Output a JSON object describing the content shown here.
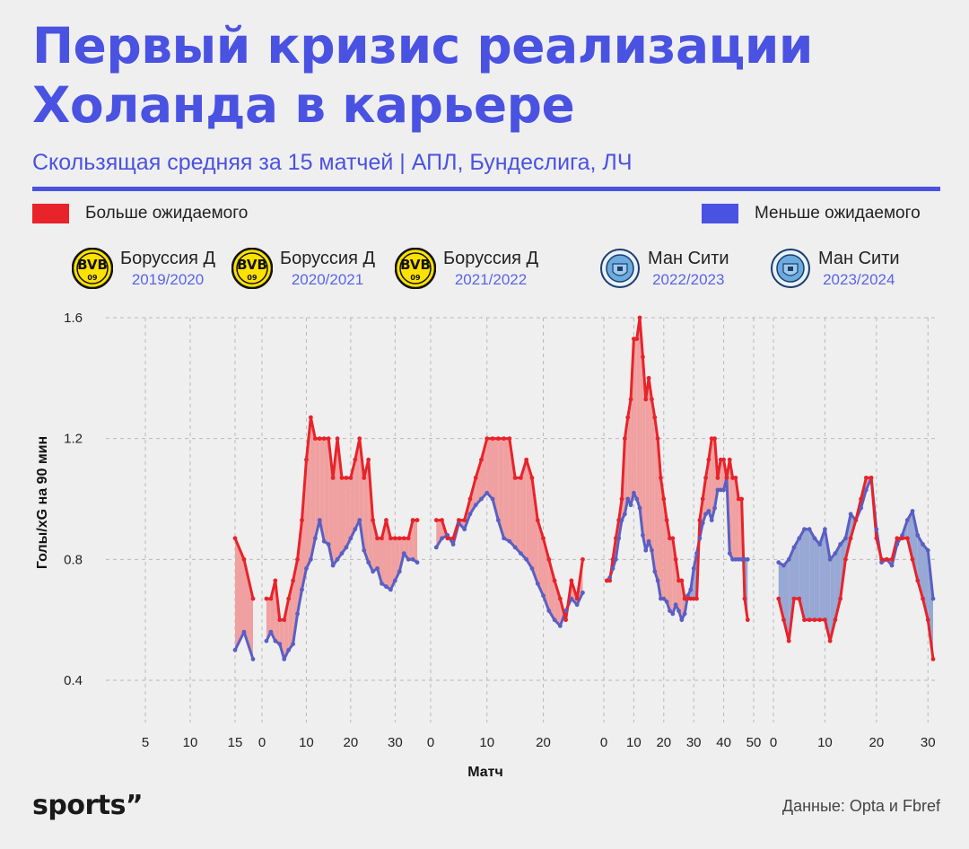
{
  "title": "Первый кризис реализации Холанда в карьере",
  "subtitle": "Скользящая средняя за 15 матчей | АПЛ, Бундеслига, ЛЧ",
  "legend": {
    "above": "Больше ожидаемого",
    "below": "Меньше ожидаемого"
  },
  "colors": {
    "accent": "#4a52e2",
    "goals": "#e8232a",
    "xg": "#5a5fc4",
    "above_fill": "#f0a0a0",
    "below_fill": "#97a8d4"
  },
  "seasons": [
    {
      "club": "Боруссия Д",
      "season": "2019/2020",
      "logo": "bvb-logo"
    },
    {
      "club": "Боруссия Д",
      "season": "2020/2021",
      "logo": "bvb-logo"
    },
    {
      "club": "Боруссия Д",
      "season": "2021/2022",
      "logo": "bvb-logo"
    },
    {
      "club": "Ман Сити",
      "season": "2022/2023",
      "logo": "man-city-logo"
    },
    {
      "club": "Ман Сити",
      "season": "2023/2024",
      "logo": "man-city-logo"
    }
  ],
  "chart_data": {
    "type": "line",
    "ylabel": "Голы/xG на 90 мин",
    "xlabel": "Матч",
    "ylim": [
      0.4,
      1.6
    ],
    "yticks": [
      "0.4",
      "0.8",
      "1.2",
      "1.6"
    ],
    "grid": true,
    "legend": "top",
    "series_names": [
      "goals",
      "xG"
    ],
    "panels": [
      {
        "season": "2019/2020",
        "xrange": [
          1,
          17
        ],
        "xticks": [
          5,
          10,
          15
        ],
        "x": [
          15,
          16,
          17
        ],
        "goals": [
          0.87,
          0.8,
          0.67
        ],
        "xg": [
          0.5,
          0.56,
          0.47
        ]
      },
      {
        "season": "2020/2021",
        "xrange": [
          0,
          36
        ],
        "xticks": [
          0,
          10,
          20,
          30
        ],
        "x": [
          1,
          2,
          3,
          4,
          5,
          6,
          7,
          8,
          9,
          10,
          11,
          12,
          13,
          14,
          15,
          16,
          17,
          18,
          19,
          20,
          21,
          22,
          23,
          24,
          25,
          26,
          27,
          28,
          29,
          30,
          31,
          32,
          33,
          34,
          35
        ],
        "goals": [
          0.67,
          0.67,
          0.73,
          0.6,
          0.6,
          0.67,
          0.73,
          0.8,
          0.93,
          1.13,
          1.27,
          1.2,
          1.2,
          1.2,
          1.2,
          1.07,
          1.2,
          1.07,
          1.07,
          1.07,
          1.13,
          1.2,
          1.07,
          1.13,
          0.93,
          0.87,
          0.87,
          0.93,
          0.87,
          0.87,
          0.87,
          0.87,
          0.87,
          0.93,
          0.93
        ],
        "xg": [
          0.53,
          0.56,
          0.53,
          0.52,
          0.47,
          0.5,
          0.52,
          0.62,
          0.7,
          0.77,
          0.8,
          0.87,
          0.93,
          0.86,
          0.85,
          0.78,
          0.8,
          0.82,
          0.84,
          0.87,
          0.9,
          0.93,
          0.83,
          0.79,
          0.76,
          0.77,
          0.72,
          0.71,
          0.7,
          0.73,
          0.76,
          0.82,
          0.8,
          0.8,
          0.79
        ]
      },
      {
        "season": "2021/2022",
        "xrange": [
          0,
          29
        ],
        "xticks": [
          0,
          10,
          20
        ],
        "x": [
          1,
          2,
          3,
          4,
          5,
          6,
          7,
          8,
          9,
          10,
          11,
          12,
          13,
          14,
          15,
          16,
          17,
          18,
          19,
          20,
          21,
          22,
          23,
          24,
          25,
          26,
          27
        ],
        "goals": [
          0.93,
          0.93,
          0.87,
          0.87,
          0.93,
          0.93,
          1.0,
          1.07,
          1.13,
          1.2,
          1.2,
          1.2,
          1.2,
          1.2,
          1.07,
          1.07,
          1.13,
          1.07,
          0.93,
          0.87,
          0.8,
          0.73,
          0.67,
          0.6,
          0.73,
          0.67,
          0.8
        ],
        "xg": [
          0.84,
          0.87,
          0.88,
          0.85,
          0.92,
          0.9,
          0.95,
          0.98,
          1.0,
          1.02,
          1.0,
          0.93,
          0.87,
          0.86,
          0.84,
          0.82,
          0.8,
          0.77,
          0.72,
          0.68,
          0.63,
          0.6,
          0.58,
          0.63,
          0.67,
          0.65,
          0.69
        ]
      },
      {
        "season": "2022/2023",
        "xrange": [
          0,
          53
        ],
        "xticks": [
          0,
          10,
          20,
          30,
          40,
          50
        ],
        "x": [
          1,
          2,
          3,
          4,
          5,
          6,
          7,
          8,
          9,
          10,
          11,
          12,
          13,
          14,
          15,
          16,
          17,
          18,
          19,
          20,
          21,
          22,
          23,
          24,
          25,
          26,
          27,
          28,
          29,
          30,
          31,
          32,
          33,
          34,
          35,
          36,
          37,
          38,
          39,
          40,
          41,
          42,
          43,
          44,
          45,
          46,
          47,
          48
        ],
        "goals": [
          0.73,
          0.73,
          0.8,
          0.87,
          0.93,
          1.0,
          1.2,
          1.27,
          1.33,
          1.53,
          1.53,
          1.6,
          1.47,
          1.33,
          1.4,
          1.33,
          1.27,
          1.2,
          1.07,
          1.0,
          0.93,
          0.87,
          0.87,
          0.8,
          0.73,
          0.73,
          0.67,
          0.67,
          0.67,
          0.67,
          0.67,
          0.93,
          1.0,
          1.07,
          1.13,
          1.2,
          1.2,
          1.07,
          1.13,
          1.13,
          1.07,
          1.13,
          1.07,
          1.07,
          1.0,
          1.0,
          0.67,
          0.6
        ],
        "xg": [
          0.73,
          0.74,
          0.77,
          0.8,
          0.87,
          0.93,
          0.95,
          1.0,
          0.98,
          1.02,
          1.0,
          0.97,
          0.88,
          0.83,
          0.86,
          0.83,
          0.76,
          0.73,
          0.67,
          0.67,
          0.66,
          0.63,
          0.62,
          0.65,
          0.63,
          0.6,
          0.62,
          0.68,
          0.7,
          0.77,
          0.82,
          0.87,
          0.92,
          0.95,
          0.96,
          0.93,
          0.97,
          1.03,
          1.03,
          1.03,
          1.07,
          0.82,
          0.8,
          0.8,
          0.8,
          0.8,
          0.8,
          0.8
        ]
      },
      {
        "season": "2023/2024",
        "xrange": [
          0,
          31
        ],
        "xticks": [
          0,
          10,
          20,
          30
        ],
        "x": [
          1,
          2,
          3,
          4,
          5,
          6,
          7,
          8,
          9,
          10,
          11,
          12,
          13,
          14,
          15,
          16,
          17,
          18,
          19,
          20,
          21,
          22,
          23,
          24,
          25,
          26,
          27,
          28,
          29,
          30,
          31
        ],
        "goals": [
          0.67,
          0.6,
          0.53,
          0.67,
          0.67,
          0.6,
          0.6,
          0.6,
          0.6,
          0.6,
          0.53,
          0.6,
          0.67,
          0.8,
          0.87,
          0.93,
          1.0,
          1.07,
          1.07,
          0.87,
          0.8,
          0.8,
          0.8,
          0.87,
          0.87,
          0.87,
          0.8,
          0.73,
          0.67,
          0.6,
          0.47
        ],
        "xg": [
          0.79,
          0.78,
          0.8,
          0.84,
          0.87,
          0.9,
          0.9,
          0.87,
          0.85,
          0.9,
          0.8,
          0.82,
          0.85,
          0.87,
          0.95,
          0.93,
          0.97,
          1.03,
          1.07,
          0.9,
          0.79,
          0.8,
          0.78,
          0.85,
          0.88,
          0.93,
          0.96,
          0.88,
          0.85,
          0.83,
          0.67
        ]
      }
    ]
  },
  "footer": {
    "brand": "sports”",
    "source": "Данные: Opta и Fbref"
  }
}
